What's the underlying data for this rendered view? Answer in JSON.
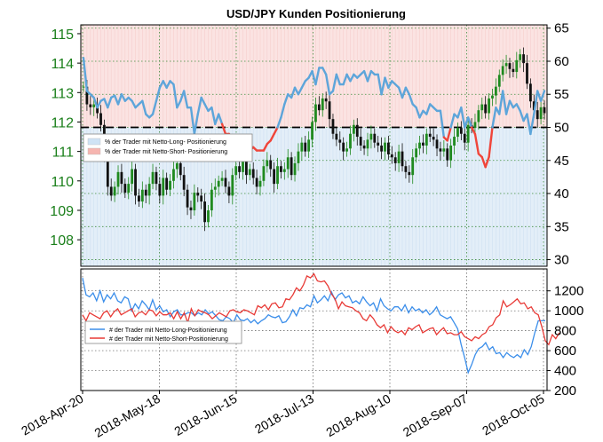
{
  "chart_data": [
    {
      "type": "candlestick+line",
      "title": "USD/JPY Kunden Positionierung",
      "left_axis": {
        "ticks": [
          "108",
          "109",
          "110",
          "111",
          "112",
          "113",
          "114",
          "115"
        ],
        "range": [
          107.1,
          115.3
        ]
      },
      "right_axis": {
        "ticks": [
          "30",
          "35",
          "40",
          "45",
          "50",
          "55",
          "60",
          "65"
        ],
        "range": [
          29,
          65.5
        ]
      },
      "threshold": 50,
      "legend": [
        {
          "label": "% der Trader mit Netto-Long- Positionierung",
          "color": "#cfe3f5"
        },
        {
          "label": "% der Trader mit Netto-Short- Positionierung",
          "color": "#f6b5b0"
        }
      ],
      "price_close": [
        113.2,
        112.6,
        112.5,
        112.6,
        112.3,
        111.9,
        110.9,
        109.8,
        109.5,
        109.8,
        110.3,
        109.9,
        109.6,
        109.9,
        110.4,
        109.5,
        109.3,
        109.7,
        109.5,
        109.9,
        110.3,
        109.9,
        109.5,
        110.1,
        109.7,
        110.0,
        110.4,
        110.6,
        110.2,
        109.7,
        109.1,
        109.0,
        109.6,
        109.5,
        109.3,
        108.6,
        109.0,
        109.7,
        109.8,
        110.0,
        110.1,
        109.8,
        109.5,
        110.2,
        110.5,
        110.3,
        110.9,
        110.2,
        110.4,
        110.1,
        109.8,
        110.0,
        110.5,
        110.7,
        110.4,
        109.9,
        110.5,
        110.3,
        110.4,
        110.8,
        110.2,
        110.6,
        111.0,
        111.3,
        111.0,
        111.4,
        112.0,
        112.6,
        112.4,
        112.8,
        112.7,
        112.1,
        111.6,
        111.4,
        111.3,
        111.0,
        111.1,
        111.6,
        111.9,
        111.5,
        111.2,
        111.1,
        111.4,
        111.6,
        111.3,
        111.2,
        111.0,
        111.3,
        110.9,
        110.8,
        110.6,
        111.0,
        110.5,
        110.3,
        110.2,
        110.8,
        111.1,
        111.3,
        111.2,
        111.6,
        111.5,
        111.4,
        111.1,
        111.0,
        111.1,
        110.7,
        111.2,
        111.5,
        111.8,
        111.6,
        111.3,
        111.9,
        111.8,
        112.0,
        112.4,
        112.6,
        112.3,
        112.8,
        112.9,
        113.2,
        113.6,
        113.9,
        114.0,
        113.8,
        113.7,
        114.1,
        114.3,
        114.0,
        113.3,
        112.7,
        112.4,
        112.1,
        112.5,
        112.3
      ],
      "pct_long": [
        60.5,
        55.5,
        55.0,
        54.5,
        53.0,
        54.0,
        54.3,
        53.0,
        54.5,
        54.8,
        53.5,
        55.0,
        54.0,
        54.5,
        54.0,
        53.0,
        53.5,
        54.0,
        52.0,
        51.5,
        52.0,
        54.0,
        56.0,
        57.0,
        56.0,
        57.0,
        56.5,
        53.0,
        54.0,
        55.5,
        53.0,
        53.0,
        49.0,
        52.0,
        54.5,
        53.5,
        52.5,
        53.0,
        50.5,
        52.0,
        50.5,
        49.0,
        49.0,
        48.5,
        47.0,
        48.5,
        47.0,
        47.5,
        46.5,
        47.0,
        46.5,
        46.5,
        46.5,
        47.5,
        48.0,
        49.0,
        50.0,
        51.5,
        53.5,
        55.0,
        54.5,
        56.0,
        55.0,
        56.0,
        57.0,
        57.5,
        58.5,
        56.5,
        59.0,
        59.0,
        58.0,
        55.0,
        55.5,
        58.0,
        56.5,
        56.5,
        58.0,
        57.0,
        58.0,
        57.5,
        58.0,
        58.5,
        57.0,
        58.5,
        58.0,
        58.0,
        55.0,
        57.5,
        56.0,
        57.0,
        56.5,
        56.0,
        54.5,
        56.0,
        55.0,
        53.5,
        53.0,
        51.5,
        52.5,
        52.0,
        53.5,
        53.0,
        52.5,
        52.5,
        48.5,
        48.0,
        50.0,
        52.0,
        51.5,
        53.0,
        50.0,
        51.5,
        50.0,
        49.0,
        46.0,
        45.5,
        44.0,
        45.5,
        50.0,
        53.0,
        52.0,
        55.5,
        52.0,
        54.0,
        53.0,
        53.5,
        52.5,
        51.0,
        52.0,
        49.0,
        52.0,
        55.5,
        54.0,
        55.5
      ],
      "pct_short": [
        null,
        null,
        null,
        null,
        null,
        null,
        null,
        null,
        null,
        null,
        null,
        null,
        null,
        null,
        null,
        null,
        null,
        null,
        null,
        null,
        null,
        null,
        null,
        null,
        null,
        null,
        null,
        null,
        null,
        null,
        null,
        null,
        null,
        null,
        null,
        null,
        null,
        null,
        null,
        null,
        null,
        null,
        null,
        null,
        null,
        null,
        null,
        null,
        null,
        null,
        null,
        null,
        null,
        null,
        null,
        null,
        null,
        null,
        null,
        null,
        null,
        null,
        null,
        null,
        null,
        null,
        null,
        null,
        null,
        null,
        null,
        null,
        null,
        null,
        null,
        null,
        null,
        null,
        null,
        null,
        null,
        null,
        null,
        null,
        null,
        null,
        null,
        null,
        null,
        null,
        null,
        null,
        null,
        null,
        null,
        null,
        null,
        null,
        null,
        null,
        null,
        null,
        null,
        null,
        null,
        null,
        null,
        null,
        null,
        null,
        null,
        null,
        null,
        null,
        null,
        null,
        null,
        null,
        null,
        null,
        null,
        null,
        null,
        null,
        null,
        null,
        null,
        null,
        null,
        null,
        null,
        null,
        null,
        null,
        null,
        null
      ],
      "pct_long_series_color": "#5da5da",
      "pct_short_series_color": "#f0453a"
    },
    {
      "type": "line",
      "right_axis": {
        "ticks": [
          "200",
          "400",
          "600",
          "800",
          "1000",
          "1200"
        ],
        "range": [
          200,
          1420
        ]
      },
      "legend": [
        {
          "label": "# der Trader mit Netto-Long-Positionierung",
          "color": "#3b8eea"
        },
        {
          "label": "# der Trader mit Netto-Short-Positionierung",
          "color": "#e83a36"
        }
      ],
      "long_count": [
        1330,
        1160,
        1140,
        1180,
        1100,
        1200,
        1090,
        1160,
        1120,
        1180,
        1100,
        1080,
        1140,
        1120,
        1000,
        1070,
        1020,
        1100,
        1060,
        1010,
        1110,
        1010,
        1050,
        990,
        1010,
        940,
        990,
        1010,
        960,
        960,
        980,
        980,
        950,
        980,
        960,
        1010,
        970,
        990,
        950,
        910,
        900,
        940,
        920,
        880,
        960,
        910,
        900,
        920,
        880,
        910,
        870,
        900,
        920,
        960,
        940,
        930,
        950,
        880,
        890,
        940,
        1010,
        950,
        1030,
        1020,
        1060,
        1040,
        1150,
        1080,
        1110,
        1150,
        1100,
        1190,
        1110,
        1160,
        1180,
        1130,
        1150,
        1080,
        1100,
        1070,
        1140,
        1090,
        1050,
        1080,
        1000,
        1120,
        1050,
        1020,
        1000,
        1040,
        1040,
        1000,
        1060,
        980,
        1040,
        1000,
        1020,
        980,
        1010,
        960,
        990,
        1040,
        960,
        940,
        920,
        940,
        880,
        820,
        660,
        530,
        380,
        460,
        560,
        620,
        640,
        680,
        610,
        640,
        570,
        580,
        530,
        580,
        550,
        530,
        560,
        530,
        610,
        560,
        640,
        780,
        900,
        900,
        900
      ],
      "short_count": [
        960,
        900,
        980,
        960,
        940,
        920,
        980,
        1000,
        940,
        990,
        1020,
        960,
        980,
        1000,
        1020,
        940,
        980,
        990,
        960,
        1010,
        1000,
        950,
        990,
        960,
        960,
        980,
        920,
        990,
        920,
        980,
        880,
        1020,
        950,
        1010,
        990,
        980,
        960,
        920,
        950,
        980,
        960,
        940,
        1000,
        1010,
        990,
        980,
        1010,
        1000,
        980,
        960,
        1050,
        1030,
        1060,
        1010,
        1070,
        1080,
        1030,
        1040,
        1120,
        1110,
        1160,
        1230,
        1200,
        1260,
        1350,
        1330,
        1370,
        1300,
        1290,
        1300,
        1250,
        1170,
        1120,
        1020,
        1090,
        1050,
        1040,
        1030,
        1000,
        980,
        920,
        900,
        960,
        920,
        860,
        830,
        860,
        780,
        840,
        800,
        780,
        800,
        760,
        830,
        810,
        840,
        860,
        780,
        800,
        820,
        830,
        760,
        800,
        830,
        770,
        780,
        760,
        760,
        790,
        740,
        720,
        700,
        740,
        720,
        760,
        780,
        840,
        860,
        930,
        960,
        1100,
        1040,
        1060,
        1090,
        1120,
        1070,
        1080,
        1020,
        1040,
        980,
        960,
        840,
        700,
        660,
        760,
        720,
        780
      ],
      "long_color": "#3b8eea",
      "short_color": "#e83a36"
    }
  ],
  "x_axis": {
    "labels": [
      "2018-Apr-20",
      "2018-May-18",
      "2018-Jun-15",
      "2018-Jul-13",
      "2018-Aug-10",
      "2018-Sep-07",
      "2018-Oct-05"
    ]
  }
}
